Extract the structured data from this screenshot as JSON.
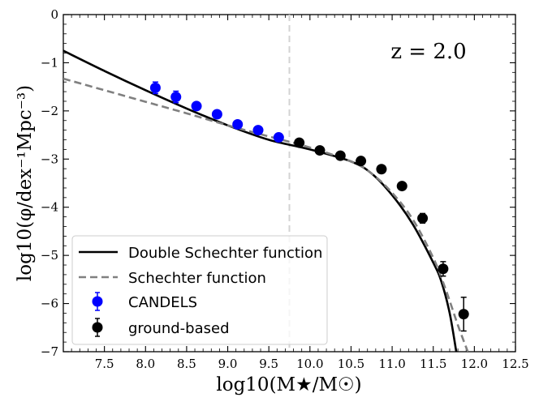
{
  "chart_data": {
    "type": "scatter",
    "title": "",
    "xlabel": "log10(M★/M☉)",
    "ylabel": "log10(φ/dex⁻¹Mpc⁻³)",
    "xlim": [
      7.0,
      12.5
    ],
    "ylim": [
      -7,
      0
    ],
    "xticks": [
      7.5,
      8.0,
      8.5,
      9.0,
      9.5,
      10.0,
      10.5,
      11.0,
      11.5,
      12.0,
      12.5
    ],
    "xtick_labels": [
      "7.5",
      "8.0",
      "8.5",
      "9.0",
      "9.5",
      "10.0",
      "10.5",
      "11.0",
      "11.5",
      "12.0",
      "12.5"
    ],
    "yticks": [
      0,
      -1,
      -2,
      -3,
      -4,
      -5,
      -6,
      -7
    ],
    "ytick_labels": [
      "0",
      "−1",
      "−2",
      "−3",
      "−4",
      "−5",
      "−6",
      "−7"
    ],
    "annotation": "z = 2.0",
    "vertical_line_x": 9.75,
    "legend_position": "lower-left",
    "series": [
      {
        "name": "Double Schechter function",
        "kind": "line",
        "style": "solid",
        "color": "#000000",
        "x": [
          7.0,
          7.5,
          8.0,
          8.5,
          9.0,
          9.5,
          10.0,
          10.5,
          10.75,
          11.0,
          11.25,
          11.5,
          11.6,
          11.7,
          11.78
        ],
        "y": [
          -0.75,
          -1.17,
          -1.57,
          -1.95,
          -2.3,
          -2.6,
          -2.8,
          -3.05,
          -3.3,
          -3.75,
          -4.35,
          -5.15,
          -5.55,
          -6.2,
          -7.0
        ]
      },
      {
        "name": "Schechter function",
        "kind": "line",
        "style": "dashed",
        "color": "#808080",
        "x": [
          7.0,
          7.5,
          8.0,
          8.5,
          9.0,
          9.5,
          10.0,
          10.5,
          10.75,
          11.0,
          11.25,
          11.5,
          11.65,
          11.8,
          11.92
        ],
        "y": [
          -1.33,
          -1.57,
          -1.81,
          -2.05,
          -2.3,
          -2.53,
          -2.76,
          -3.05,
          -3.3,
          -3.7,
          -4.25,
          -5.05,
          -5.7,
          -6.45,
          -7.0
        ]
      },
      {
        "name": "CANDELS",
        "kind": "errorbar",
        "color": "#0000ff",
        "x": [
          8.12,
          8.37,
          8.62,
          8.87,
          9.12,
          9.37,
          9.62
        ],
        "y": [
          -1.52,
          -1.71,
          -1.9,
          -2.07,
          -2.28,
          -2.4,
          -2.55
        ],
        "yerr": [
          0.12,
          0.12,
          0.07,
          0.05,
          0.05,
          0.04,
          0.04
        ]
      },
      {
        "name": "ground-based",
        "kind": "errorbar",
        "color": "#000000",
        "x": [
          9.87,
          10.12,
          10.37,
          10.62,
          10.87,
          11.12,
          11.37,
          11.62,
          11.87
        ],
        "y": [
          -2.66,
          -2.82,
          -2.93,
          -3.04,
          -3.21,
          -3.56,
          -4.23,
          -5.28,
          -6.22
        ],
        "yerr": [
          0.04,
          0.04,
          0.04,
          0.05,
          0.06,
          0.07,
          0.1,
          0.15,
          0.35
        ]
      }
    ]
  }
}
